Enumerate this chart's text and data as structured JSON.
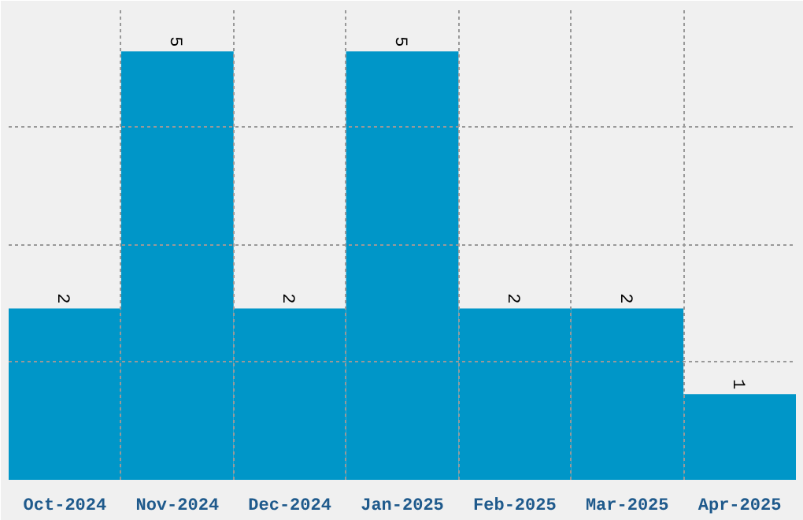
{
  "chart_data": {
    "type": "bar",
    "categories": [
      "Oct-2024",
      "Nov-2024",
      "Dec-2024",
      "Jan-2025",
      "Feb-2025",
      "Mar-2025",
      "Apr-2025"
    ],
    "values": [
      2,
      5,
      2,
      5,
      2,
      2,
      1
    ],
    "color": "#0096c8",
    "ylim": [
      0,
      5.5
    ],
    "yticks": [
      {
        "value": 1.375,
        "label": null
      },
      {
        "value": 2.75,
        "label": null
      },
      {
        "value": 4.125,
        "label": null
      }
    ],
    "tick_labels": "x",
    "grid": true,
    "data_labels": true
  }
}
